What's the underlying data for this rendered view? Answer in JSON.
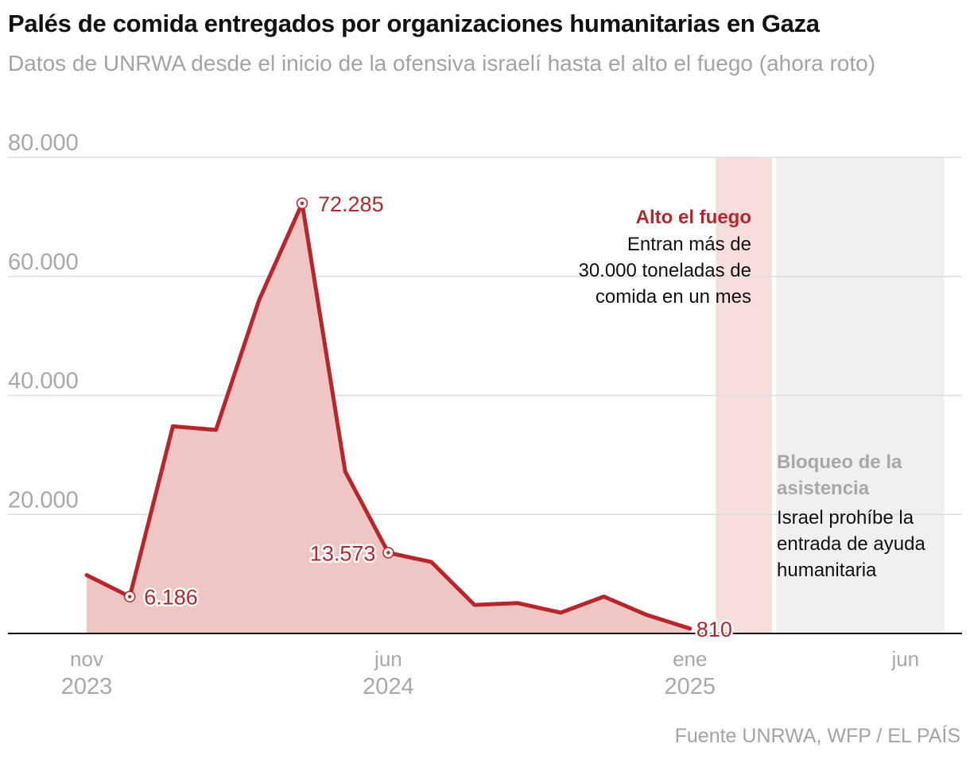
{
  "header": {
    "title": "Palés de comida entregados por organizaciones humanitarias en Gaza",
    "subtitle": "Datos de UNRWA desde el inicio de la ofensiva israelí hasta el alto el fuego (ahora roto)"
  },
  "footer": {
    "source": "Fuente UNRWA, WFP / EL PAÍS"
  },
  "colors": {
    "line": "#b8262b",
    "area": "#efc6c4",
    "ceasefire_band": "#f6dedd",
    "blockade_band": "#eff0ef",
    "grid": "#dddddd",
    "axis": "#111111"
  },
  "chart_data": {
    "type": "area",
    "title": "Palés de comida entregados por organizaciones humanitarias en Gaza",
    "xlabel": "",
    "ylabel": "",
    "ylim": [
      0,
      80000
    ],
    "grid": true,
    "y_ticks": [
      {
        "value": 20000,
        "label": "20.000"
      },
      {
        "value": 40000,
        "label": "40.000"
      },
      {
        "value": 60000,
        "label": "60.000"
      },
      {
        "value": 80000,
        "label": "80.000"
      }
    ],
    "x_ticks": [
      {
        "month_index": 0,
        "month": "nov",
        "year": "2023"
      },
      {
        "month_index": 7,
        "month": "jun",
        "year": "2024"
      },
      {
        "month_index": 14,
        "month": "ene",
        "year": "2025"
      },
      {
        "month_index": 19,
        "month": "jun",
        "year": ""
      }
    ],
    "series": [
      {
        "name": "Palés de comida",
        "points": [
          {
            "t": 0.0,
            "value": 9800
          },
          {
            "t": 1.0,
            "value": 6186,
            "label": "6.186"
          },
          {
            "t": 2.0,
            "value": 34800
          },
          {
            "t": 3.0,
            "value": 34200
          },
          {
            "t": 4.0,
            "value": 56000
          },
          {
            "t": 5.0,
            "value": 72285,
            "label": "72.285"
          },
          {
            "t": 6.0,
            "value": 27200
          },
          {
            "t": 7.0,
            "value": 13573,
            "label": "13.573"
          },
          {
            "t": 8.0,
            "value": 12000
          },
          {
            "t": 9.0,
            "value": 4800
          },
          {
            "t": 10.0,
            "value": 5100
          },
          {
            "t": 11.0,
            "value": 3500
          },
          {
            "t": 12.0,
            "value": 6200
          },
          {
            "t": 13.0,
            "value": 3100
          },
          {
            "t": 14.0,
            "value": 810,
            "label": "810"
          }
        ]
      }
    ],
    "bands": [
      {
        "name": "ceasefire",
        "start": 14.6,
        "end": 15.9
      },
      {
        "name": "blockade",
        "start": 16.0,
        "end": 19.9
      }
    ],
    "annotations": {
      "ceasefire": {
        "title": "Alto el fuego",
        "lines": [
          "Entran más de",
          "30.000 toneladas de",
          "comida en un mes"
        ]
      },
      "blockade": {
        "title_lines": [
          "Bloqueo de la",
          "asistencia"
        ],
        "lines": [
          "Israel prohíbe la",
          "entrada de ayuda",
          "humanitaria"
        ]
      }
    }
  }
}
